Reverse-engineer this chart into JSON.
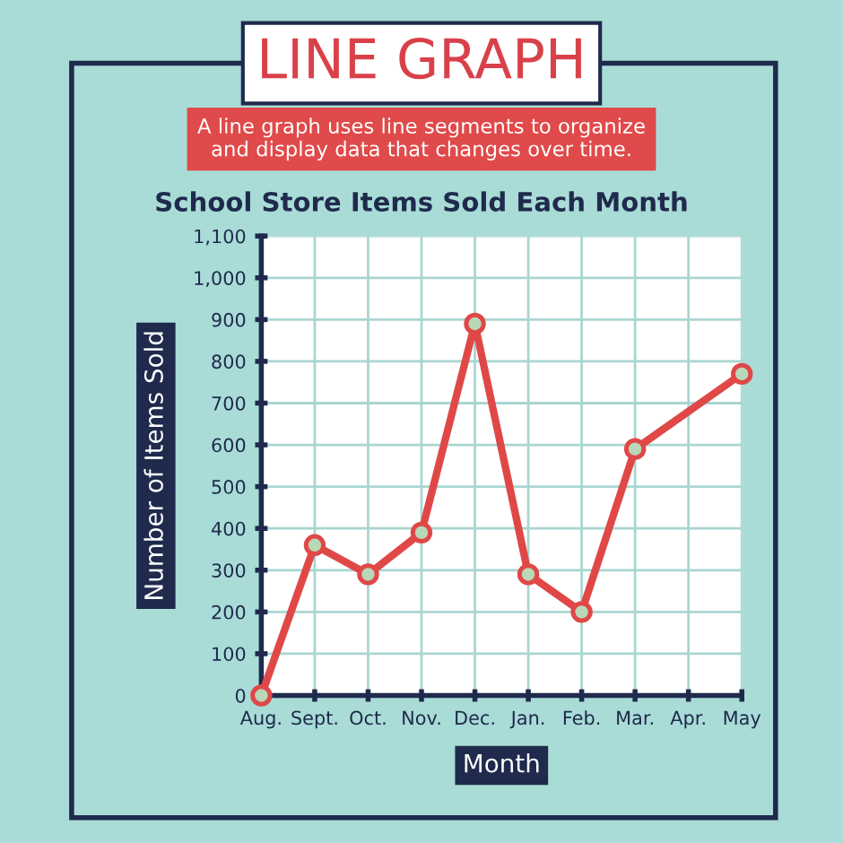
{
  "chart_data": {
    "type": "line",
    "title": "LINE GRAPH",
    "subtitle": "A line graph uses line segments to organize\nand display data that changes over time.",
    "annotations": [
      "School Store Items Sold Each Month"
    ],
    "xlabel": "Month",
    "ylabel": "Number of Items Sold",
    "categories": [
      "Aug.",
      "Sept.",
      "Oct.",
      "Nov.",
      "Dec.",
      "Jan.",
      "Feb.",
      "Mar.",
      "Apr.",
      "May"
    ],
    "series": [
      {
        "color": "#e04848",
        "values": [
          0,
          360,
          290,
          390,
          890,
          290,
          200,
          590,
          null,
          770
        ]
      }
    ],
    "ylim": [
      0,
      1100
    ],
    "yticks": [
      0,
      100,
      200,
      300,
      400,
      500,
      600,
      700,
      800,
      900,
      {
        "value": 1000,
        "label": "1,000"
      },
      {
        "value": 1100,
        "label": "1,100"
      }
    ],
    "grid": true,
    "marker": "circle",
    "line_style": "solid"
  }
}
